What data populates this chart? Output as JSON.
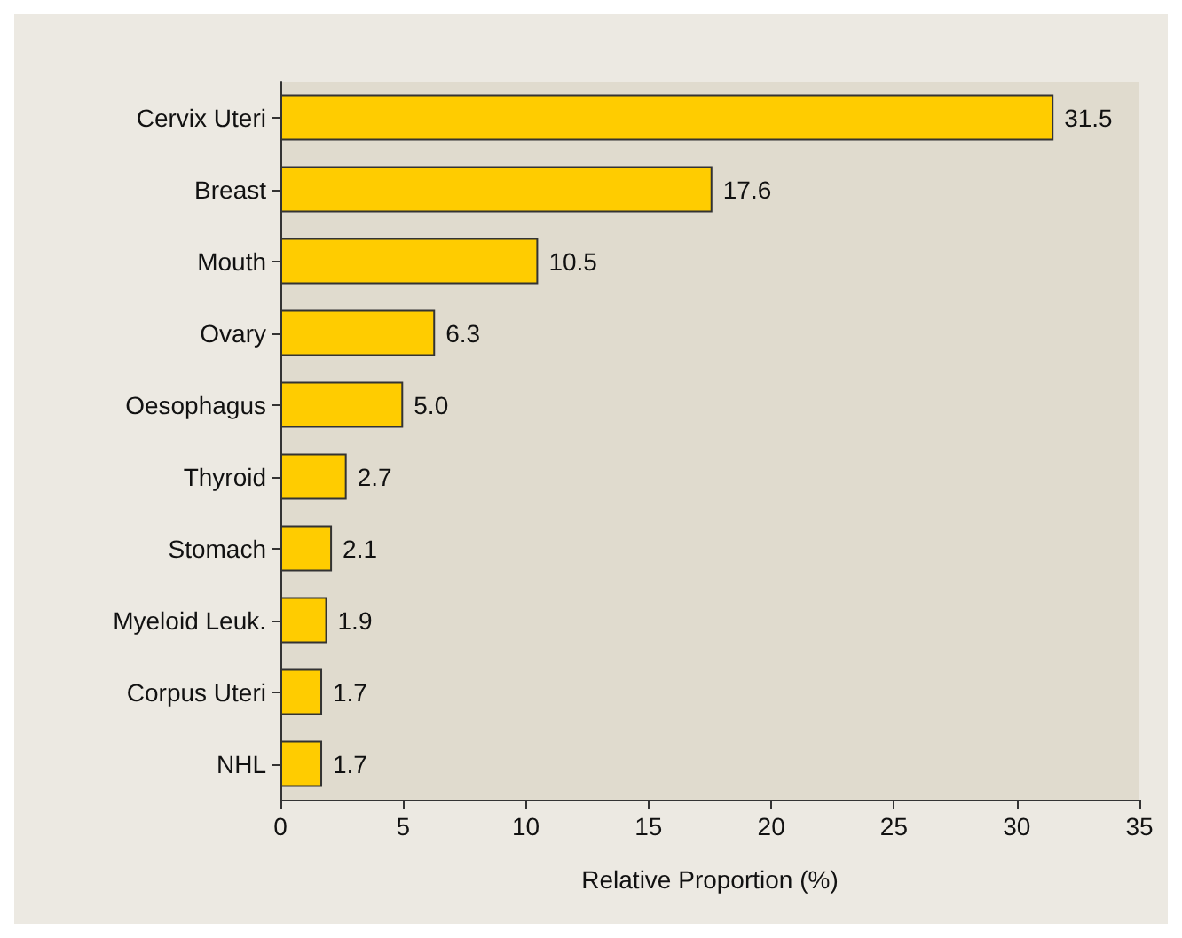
{
  "chart_data": {
    "type": "bar",
    "orientation": "horizontal",
    "xlabel": "Relative Proportion (%)",
    "categories": [
      "Cervix Uteri",
      "Breast",
      "Mouth",
      "Ovary",
      "Oesophagus",
      "Thyroid",
      "Stomach",
      "Myeloid Leuk.",
      "Corpus Uteri",
      "NHL"
    ],
    "values": [
      31.5,
      17.6,
      10.5,
      6.3,
      5.0,
      2.7,
      2.1,
      1.9,
      1.7,
      1.7
    ],
    "value_labels": [
      "31.5",
      "17.6",
      "10.5",
      "6.3",
      "5.0",
      "2.7",
      "2.1",
      "1.9",
      "1.7",
      "1.7"
    ],
    "color": "#ffcc00",
    "xlim": [
      0,
      35
    ],
    "xticks": [
      0,
      5,
      10,
      15,
      20,
      25,
      30,
      35
    ]
  }
}
